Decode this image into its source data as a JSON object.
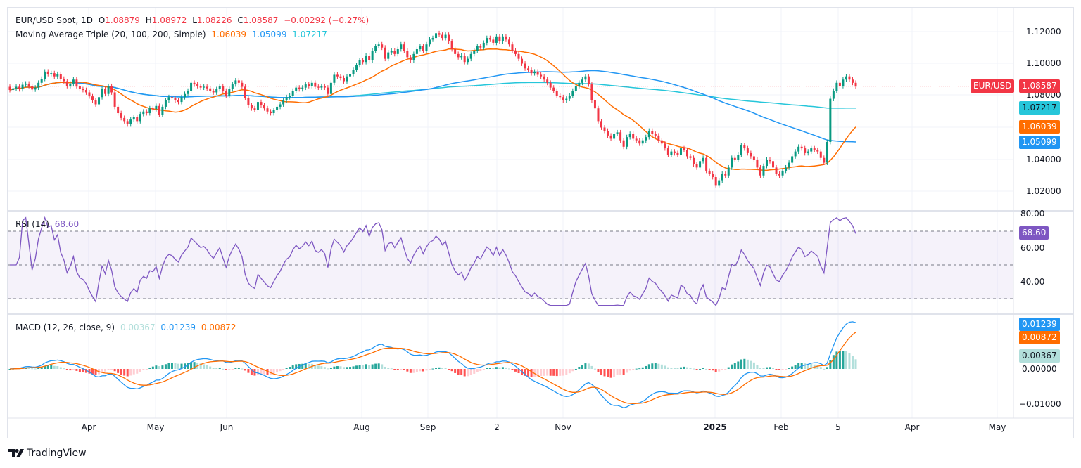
{
  "header": {
    "symbol": "EUR/USD Spot, 1D",
    "open_label": "O",
    "open": "1.08879",
    "high_label": "H",
    "high": "1.08972",
    "low_label": "L",
    "low": "1.08226",
    "close_label": "C",
    "close": "1.08587",
    "change": "−0.00292 (−0.27%)",
    "ma_title": "Moving Average Triple (20, 100, 200, Simple)",
    "ma20": "1.06039",
    "ma100": "1.05099",
    "ma200": "1.07217"
  },
  "colors": {
    "up": "#089981",
    "down": "#f23645",
    "ma20": "#ff6d00",
    "ma100": "#2196f3",
    "ma200": "#26c6da",
    "rsi": "#7e57c2",
    "macd": "#2196f3",
    "signal": "#ff6d00",
    "hist_up_strong": "#26a69a",
    "hist_up_weak": "#b2dfdb",
    "hist_down_strong": "#ff5252",
    "hist_down_weak": "#ffcdd2"
  },
  "price_axis": {
    "ticks": [
      "1.12000",
      "1.10000",
      "1.08000",
      "1.04000",
      "1.02000"
    ],
    "symbol_badge": "EUR/USD",
    "last_badge": "1.08587",
    "ma200_badge": "1.07217",
    "ma20_badge": "1.06039",
    "ma100_badge": "1.05099"
  },
  "rsi": {
    "title": "RSI (14)",
    "value": "68.60",
    "ticks": [
      "80.00",
      "60.00",
      "40.00"
    ],
    "badge": "68.60"
  },
  "macd": {
    "title": "MACD (12, 26, close, 9)",
    "hist": "0.00367",
    "macd": "0.01239",
    "signal": "0.00872",
    "ticks": [
      "0.00000",
      "−0.01000"
    ],
    "macd_badge": "0.01239",
    "signal_badge": "0.00872",
    "hist_badge": "0.00367"
  },
  "x_axis": {
    "labels": [
      "Apr",
      "May",
      "Jun",
      "Aug",
      "Sep",
      "2",
      "Nov",
      "2025",
      "Feb",
      "5",
      "Apr",
      "May"
    ]
  },
  "branding": {
    "name": "TradingView"
  },
  "chart_data": {
    "type": "candlestick",
    "title": "EUR/USD Spot, 1D",
    "ylim": [
      1.012,
      1.128
    ],
    "closes": [
      1.0835,
      1.0845,
      1.0855,
      1.084,
      1.0868,
      1.0875,
      1.086,
      1.0838,
      1.085,
      1.088,
      1.0905,
      1.095,
      1.0935,
      1.094,
      1.092,
      1.0935,
      1.0905,
      1.089,
      1.086,
      1.0875,
      1.09,
      1.086,
      1.084,
      1.0835,
      1.082,
      1.0795,
      1.077,
      1.0745,
      1.079,
      1.084,
      1.081,
      1.086,
      1.082,
      1.073,
      1.069,
      1.066,
      1.064,
      1.062,
      1.065,
      1.0665,
      1.064,
      1.0685,
      1.07,
      1.069,
      1.072,
      1.0715,
      1.0735,
      1.068,
      1.073,
      1.077,
      1.079,
      1.0785,
      1.077,
      1.076,
      1.079,
      1.081,
      1.083,
      1.088,
      1.087,
      1.086,
      1.085,
      1.0855,
      1.0845,
      1.083,
      1.082,
      1.084,
      1.086,
      1.083,
      1.08,
      1.084,
      1.087,
      1.0895,
      1.088,
      1.0855,
      1.0785,
      1.074,
      1.072,
      1.071,
      1.076,
      1.074,
      1.072,
      1.07,
      1.069,
      1.071,
      1.073,
      1.0745,
      1.077,
      1.079,
      1.08,
      1.083,
      1.085,
      1.084,
      1.085,
      1.087,
      1.086,
      1.088,
      1.0855,
      1.085,
      1.086,
      1.085,
      1.081,
      1.088,
      1.093,
      1.092,
      1.091,
      1.089,
      1.092,
      1.0935,
      1.096,
      1.099,
      1.102,
      1.101,
      1.105,
      1.102,
      1.108,
      1.111,
      1.112,
      1.11,
      1.103,
      1.107,
      1.108,
      1.106,
      1.109,
      1.112,
      1.108,
      1.104,
      1.102,
      1.106,
      1.109,
      1.111,
      1.108,
      1.112,
      1.115,
      1.116,
      1.119,
      1.118,
      1.116,
      1.118,
      1.114,
      1.109,
      1.106,
      1.104,
      1.105,
      1.101,
      1.103,
      1.106,
      1.108,
      1.111,
      1.11,
      1.113,
      1.116,
      1.115,
      1.113,
      1.117,
      1.114,
      1.117,
      1.115,
      1.112,
      1.108,
      1.106,
      1.103,
      1.1,
      1.097,
      1.096,
      1.094,
      1.095,
      1.093,
      1.092,
      1.09,
      1.088,
      1.085,
      1.083,
      1.08,
      1.079,
      1.077,
      1.078,
      1.08,
      1.083,
      1.086,
      1.088,
      1.09,
      1.092,
      1.087,
      1.077,
      1.072,
      1.064,
      1.06,
      1.058,
      1.055,
      1.053,
      1.056,
      1.057,
      1.052,
      1.048,
      1.054,
      1.056,
      1.053,
      1.052,
      1.05,
      1.052,
      1.054,
      1.058,
      1.056,
      1.055,
      1.052,
      1.05,
      1.047,
      1.043,
      1.045,
      1.044,
      1.043,
      1.047,
      1.046,
      1.042,
      1.041,
      1.037,
      1.035,
      1.039,
      1.041,
      1.033,
      1.031,
      1.029,
      1.024,
      1.027,
      1.031,
      1.03,
      1.035,
      1.041,
      1.04,
      1.043,
      1.049,
      1.047,
      1.044,
      1.042,
      1.04,
      1.035,
      1.03,
      1.036,
      1.04,
      1.039,
      1.035,
      1.031,
      1.03,
      1.033,
      1.035,
      1.038,
      1.042,
      1.045,
      1.048,
      1.047,
      1.044,
      1.045,
      1.047,
      1.046,
      1.045,
      1.041,
      1.038,
      1.051,
      1.078,
      1.083,
      1.088,
      1.086,
      1.09,
      1.092,
      1.09,
      1.088,
      1.08587
    ]
  }
}
